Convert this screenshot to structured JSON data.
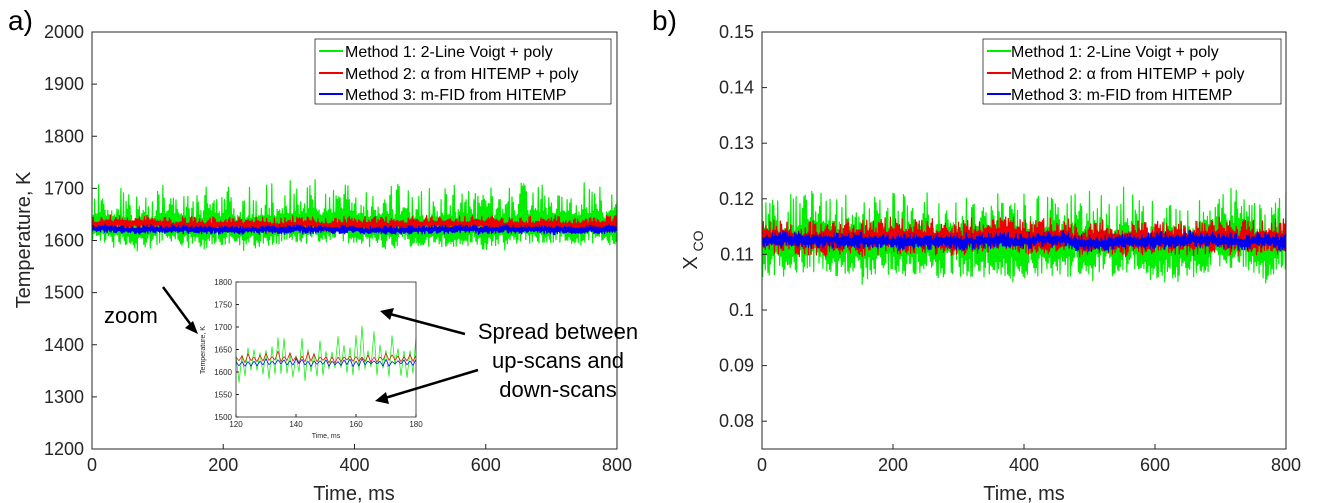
{
  "colors": {
    "method1": "#00ee00",
    "method2": "#ee0000",
    "method3": "#0000ee",
    "axis": "#262626"
  },
  "annotations": {
    "zoom": "zoom",
    "spread": [
      "Spread between",
      "up-scans and",
      "down-scans"
    ]
  },
  "chart_data": [
    {
      "panel_label": "a)",
      "type": "line",
      "xlabel": "Time, ms",
      "ylabel": "Temperature, K",
      "xlim": [
        0,
        800
      ],
      "ylim": [
        1200,
        2000
      ],
      "xticks": [
        "0",
        "200",
        "400",
        "600",
        "800"
      ],
      "yticks": [
        "1200",
        "1300",
        "1400",
        "1500",
        "1600",
        "1700",
        "1800",
        "1900",
        "2000"
      ],
      "legend_position": "top-right",
      "series": [
        {
          "name": "Method 1: 2-Line Voigt + poly",
          "center": 1625,
          "up": 85,
          "down": 35,
          "samples": 800
        },
        {
          "name": "Method 2: α from HITEMP + poly",
          "center": 1630,
          "up": 17,
          "down": 12,
          "samples": 800
        },
        {
          "name": "Method 3: m-FID from HITEMP",
          "center": 1622,
          "up": 8,
          "down": 9,
          "samples": 800
        }
      ],
      "inset": {
        "xlabel": "Time, ms",
        "ylabel": "Temperature, K",
        "xlim": [
          120,
          180
        ],
        "ylim": [
          1500,
          1800
        ],
        "xticks": [
          "120",
          "140",
          "160",
          "180"
        ],
        "yticks": [
          "1500",
          "1550",
          "1600",
          "1650",
          "1700",
          "1750",
          "1800"
        ],
        "series": [
          {
            "name": "Method 1",
            "center": 1620,
            "up": 75,
            "down": 40,
            "samples": 60
          },
          {
            "name": "Method 2",
            "center": 1628,
            "up": 18,
            "down": 8,
            "samples": 60
          },
          {
            "name": "Method 3",
            "center": 1620,
            "up": 10,
            "down": 8,
            "samples": 60
          }
        ]
      }
    },
    {
      "panel_label": "b)",
      "type": "line",
      "xlabel": "Time, ms",
      "ylabel": "X",
      "ylabel_sub": "CO",
      "xlim": [
        0,
        800
      ],
      "ylim": [
        0.075,
        0.15
      ],
      "xticks": [
        "0",
        "200",
        "400",
        "600",
        "800"
      ],
      "yticks": [
        "0.08",
        "0.09",
        "0.1",
        "0.11",
        "0.12",
        "0.13",
        "0.14",
        "0.15"
      ],
      "legend_position": "top-right",
      "series": [
        {
          "name": "Method 1: 2-Line Voigt + poly",
          "center": 0.112,
          "up": 0.009,
          "down": 0.006,
          "samples": 800
        },
        {
          "name": "Method 2: α from HITEMP + poly",
          "center": 0.113,
          "up": 0.0035,
          "down": 0.003,
          "samples": 800
        },
        {
          "name": "Method 3: m-FID from HITEMP",
          "center": 0.1125,
          "up": 0.0015,
          "down": 0.0015,
          "samples": 800
        }
      ]
    }
  ]
}
